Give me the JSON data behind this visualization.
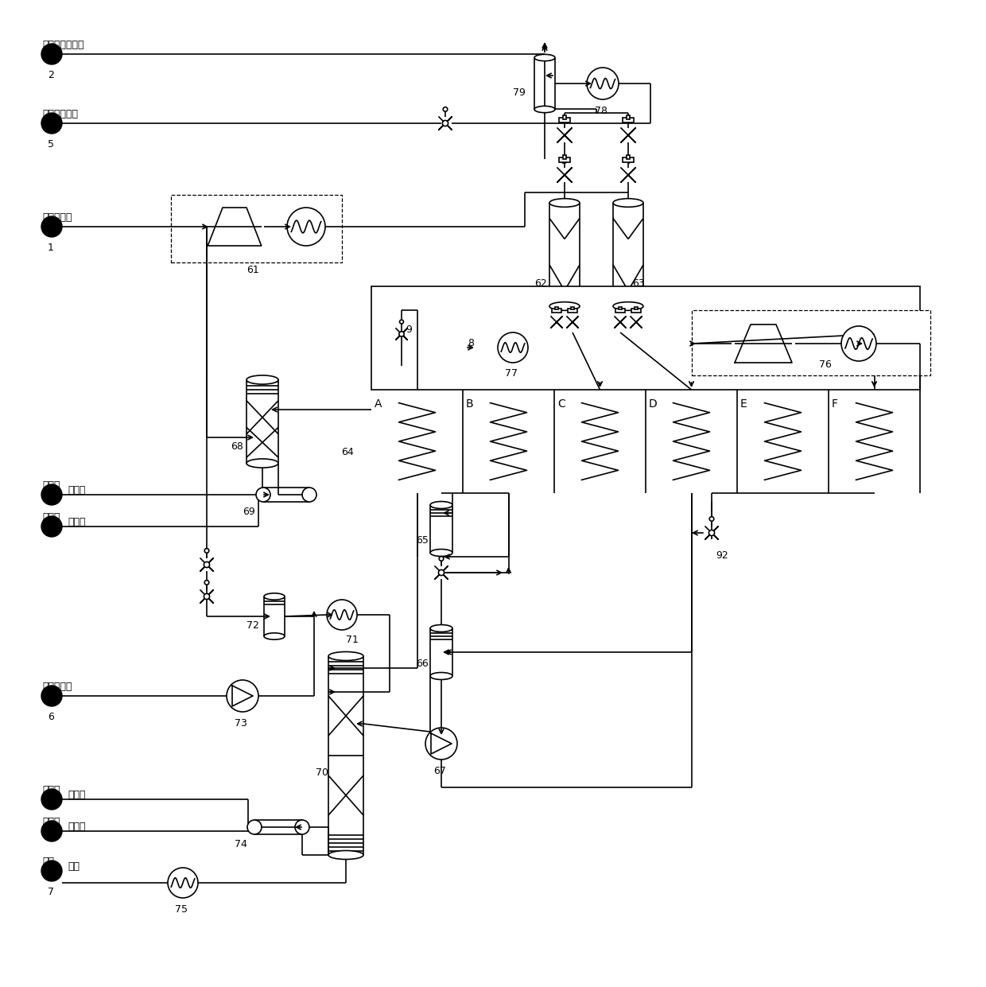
{
  "bg": "#ffffff",
  "lc": "#000000",
  "lw": 1.2,
  "figsize": [
    12.4,
    12.41
  ],
  "dpi": 100,
  "label1": "油田伴生气",
  "label2": "干气去下游管网",
  "label5": "游离水去界外",
  "label6": "液化石油气",
  "label7": "轻油",
  "labelDRY1": "导热油",
  "labelDRY2": "导热油"
}
